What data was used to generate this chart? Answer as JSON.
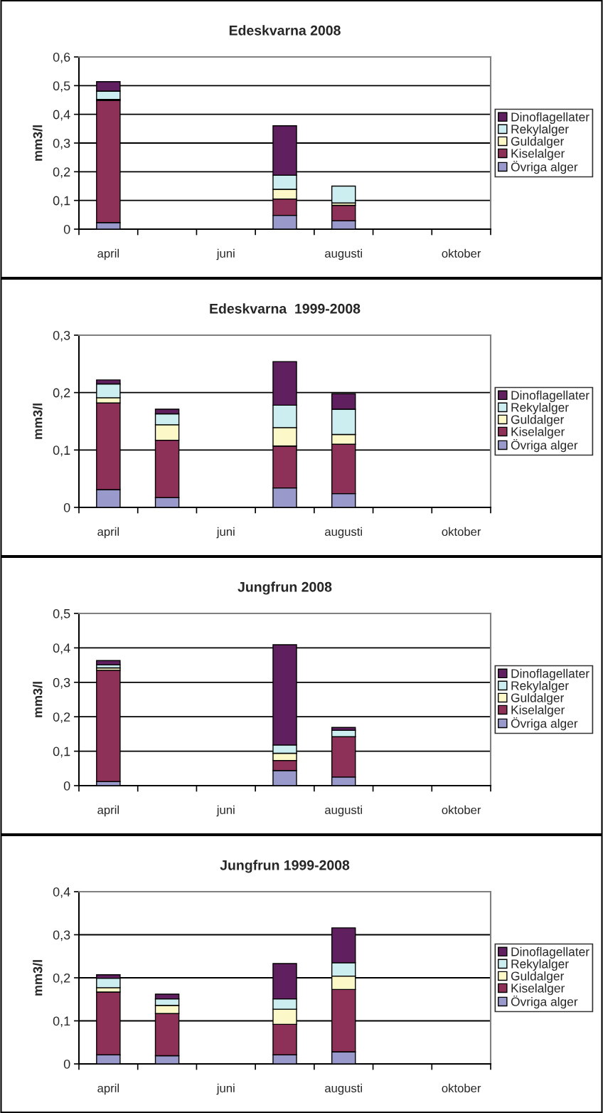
{
  "chart_data": [
    {
      "type": "bar",
      "title": "Edeskvarna 2008",
      "ylabel": "mm3/l",
      "stacked": true,
      "grid": "y",
      "legend": "right",
      "categories": [
        "april",
        null,
        "juni",
        null,
        "augusti",
        null,
        "oktober"
      ],
      "ylim": [
        0,
        0.6
      ],
      "yticks": [
        {
          "value": 0,
          "label": "0"
        },
        {
          "value": 0.1,
          "label": "0,1"
        },
        {
          "value": 0.2,
          "label": "0,2"
        },
        {
          "value": 0.3,
          "label": "0,3"
        },
        {
          "value": 0.4,
          "label": "0,4"
        },
        {
          "value": 0.5,
          "label": "0,5"
        },
        {
          "value": 0.6,
          "label": "0,6"
        }
      ],
      "series": [
        {
          "name": "Övriga alger",
          "color": "#9999cc",
          "values": [
            0.023,
            null,
            null,
            0.048,
            0.029,
            null,
            null
          ]
        },
        {
          "name": "Kiselalger",
          "color": "#8e3158",
          "values": [
            0.425,
            null,
            null,
            0.057,
            0.054,
            null,
            null
          ]
        },
        {
          "name": "Guldalger",
          "color": "#fdf8c8",
          "values": [
            0.004,
            null,
            null,
            0.034,
            0.008,
            null,
            null
          ]
        },
        {
          "name": "Rekylalger",
          "color": "#cdeef0",
          "values": [
            0.029,
            null,
            null,
            0.049,
            0.059,
            null,
            null
          ]
        },
        {
          "name": "Dinoflagellater",
          "color": "#60205f",
          "values": [
            0.033,
            null,
            null,
            0.172,
            null,
            null,
            null
          ]
        }
      ]
    },
    {
      "type": "bar",
      "title": "Edeskvarna  1999-2008",
      "ylabel": "mm3/l",
      "stacked": true,
      "grid": "y",
      "legend": "right",
      "categories": [
        "april",
        null,
        "juni",
        null,
        "augusti",
        null,
        "oktober"
      ],
      "ylim": [
        0,
        0.3
      ],
      "yticks": [
        {
          "value": 0,
          "label": "0"
        },
        {
          "value": 0.1,
          "label": "0,1"
        },
        {
          "value": 0.2,
          "label": "0,2"
        },
        {
          "value": 0.3,
          "label": "0,3"
        }
      ],
      "series": [
        {
          "name": "Övriga alger",
          "color": "#9999cc",
          "values": [
            0.031,
            0.017,
            null,
            0.034,
            0.024,
            null,
            null
          ]
        },
        {
          "name": "Kiselalger",
          "color": "#8e3158",
          "values": [
            0.151,
            0.1,
            null,
            0.073,
            0.086,
            null,
            null
          ]
        },
        {
          "name": "Guldalger",
          "color": "#fdf8c8",
          "values": [
            0.009,
            0.027,
            null,
            0.032,
            0.017,
            null,
            null
          ]
        },
        {
          "name": "Rekylalger",
          "color": "#cdeef0",
          "values": [
            0.024,
            0.019,
            null,
            0.039,
            0.044,
            null,
            null
          ]
        },
        {
          "name": "Dinoflagellater",
          "color": "#60205f",
          "values": [
            0.007,
            0.008,
            null,
            0.076,
            0.027,
            null,
            null
          ]
        }
      ]
    },
    {
      "type": "bar",
      "title": "Jungfrun 2008",
      "ylabel": "mm3/l",
      "stacked": true,
      "grid": "y",
      "legend": "right",
      "categories": [
        "april",
        null,
        "juni",
        null,
        "augusti",
        null,
        "oktober"
      ],
      "ylim": [
        0,
        0.5
      ],
      "yticks": [
        {
          "value": 0,
          "label": "0"
        },
        {
          "value": 0.1,
          "label": "0,1"
        },
        {
          "value": 0.2,
          "label": "0,2"
        },
        {
          "value": 0.3,
          "label": "0,3"
        },
        {
          "value": 0.4,
          "label": "0,4"
        },
        {
          "value": 0.5,
          "label": "0,5"
        }
      ],
      "series": [
        {
          "name": "Övriga alger",
          "color": "#9999cc",
          "values": [
            0.012,
            null,
            null,
            0.044,
            0.025,
            null,
            null
          ]
        },
        {
          "name": "Kiselalger",
          "color": "#8e3158",
          "values": [
            0.323,
            null,
            null,
            0.029,
            0.117,
            null,
            null
          ]
        },
        {
          "name": "Guldalger",
          "color": "#fdf8c8",
          "values": [
            0.007,
            null,
            null,
            0.021,
            null,
            null,
            null
          ]
        },
        {
          "name": "Rekylalger",
          "color": "#cdeef0",
          "values": [
            0.009,
            null,
            null,
            0.024,
            0.019,
            null,
            null
          ]
        },
        {
          "name": "Dinoflagellater",
          "color": "#60205f",
          "values": [
            0.012,
            null,
            null,
            0.291,
            0.008,
            null,
            null
          ]
        }
      ]
    },
    {
      "type": "bar",
      "title": "Jungfrun 1999-2008",
      "ylabel": "mm3/l",
      "stacked": true,
      "grid": "y",
      "legend": "right",
      "categories": [
        "april",
        null,
        "juni",
        null,
        "augusti",
        null,
        "oktober"
      ],
      "ylim": [
        0,
        0.4
      ],
      "yticks": [
        {
          "value": 0,
          "label": "0"
        },
        {
          "value": 0.1,
          "label": "0,1"
        },
        {
          "value": 0.2,
          "label": "0,2"
        },
        {
          "value": 0.3,
          "label": "0,3"
        },
        {
          "value": 0.4,
          "label": "0,4"
        }
      ],
      "series": [
        {
          "name": "Övriga alger",
          "color": "#9999cc",
          "values": [
            0.021,
            0.019,
            null,
            0.021,
            0.028,
            null,
            null
          ]
        },
        {
          "name": "Kiselalger",
          "color": "#8e3158",
          "values": [
            0.146,
            0.098,
            null,
            0.071,
            0.145,
            null,
            null
          ]
        },
        {
          "name": "Guldalger",
          "color": "#fdf8c8",
          "values": [
            0.01,
            0.019,
            null,
            0.035,
            0.031,
            null,
            null
          ]
        },
        {
          "name": "Rekylalger",
          "color": "#cdeef0",
          "values": [
            0.022,
            0.015,
            null,
            0.024,
            0.031,
            null,
            null
          ]
        },
        {
          "name": "Dinoflagellater",
          "color": "#60205f",
          "values": [
            0.008,
            0.011,
            null,
            0.082,
            0.081,
            null,
            null
          ]
        }
      ]
    }
  ]
}
